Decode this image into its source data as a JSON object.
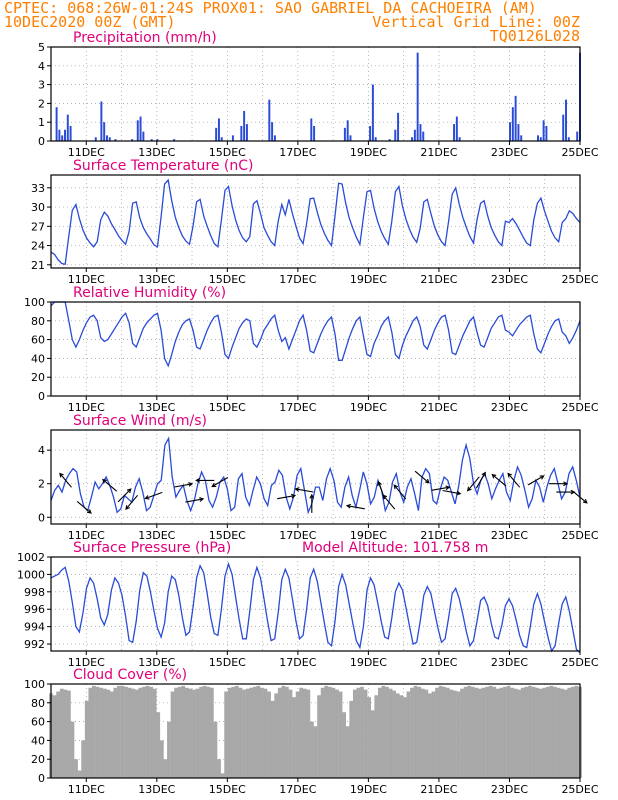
{
  "header": {
    "line1": "CPTEC:   068:26W-01:24S   PROX01: SAO GABRIEL DA CACHOEIRA (AM)",
    "line2_left": "10DEC2020 00Z (GMT)",
    "line2_right": "Vertical Grid Line: 00Z",
    "line3_right": "TQ0126L028"
  },
  "colors": {
    "header": "#ff8000",
    "panel_title": "#e0007a",
    "line": "#2a4bd7",
    "bars": "#2a4bd7",
    "cloud": "#a8a8a8",
    "arrows": "#000000",
    "grid": "#9a9a9a"
  },
  "chart_data": [
    {
      "id": "precip",
      "type": "bar",
      "title": "Precipitation (mm/h)",
      "xlabels": [
        "11DEC",
        "13DEC",
        "15DEC",
        "17DEC",
        "19DEC",
        "21DEC",
        "23DEC",
        "25DEC"
      ],
      "ylim": [
        0,
        5
      ],
      "yticks": [
        0,
        1,
        2,
        3,
        4,
        5
      ],
      "grid": true,
      "x_step_hours": 3,
      "values": [
        0,
        0,
        1.8,
        0.6,
        0.3,
        0.6,
        1.4,
        0.8,
        0,
        0,
        0,
        0,
        0,
        0,
        0,
        0,
        0.2,
        0,
        2.1,
        1.0,
        0.3,
        0.2,
        0,
        0.1,
        0,
        0,
        0,
        0,
        0,
        0.1,
        0,
        1.1,
        1.3,
        0.5,
        0,
        0,
        0.1,
        0,
        0.1,
        0,
        0,
        0,
        0,
        0,
        0.1,
        0,
        0,
        0,
        0,
        0,
        0,
        0,
        0,
        0,
        0,
        0,
        0,
        0,
        0,
        0.7,
        1.2,
        0.2,
        0,
        0,
        0,
        0.3,
        0,
        0,
        0.8,
        1.6,
        0.9,
        0,
        0,
        0,
        0,
        0,
        0,
        0,
        2.2,
        1.0,
        0.3,
        0,
        0,
        0,
        0,
        0,
        0,
        0,
        0,
        0,
        0,
        0,
        0,
        1.2,
        0.8,
        0,
        0,
        0,
        0,
        0,
        0,
        0,
        0,
        0,
        0,
        0.7,
        1.1,
        0.3,
        0,
        0,
        0,
        0,
        0,
        0,
        0.8,
        3.0,
        0.2,
        0,
        0,
        0,
        0,
        0.1,
        0,
        0.6,
        1.5,
        0,
        0,
        0,
        0,
        0.2,
        0.6,
        4.7,
        0.9,
        0.5,
        0,
        0,
        0,
        0,
        0,
        0,
        0,
        0,
        0,
        0,
        0.9,
        1.3,
        0.2,
        0,
        0,
        0,
        0,
        0,
        0,
        0,
        0,
        0,
        0,
        0,
        0,
        0,
        0,
        0,
        0,
        0,
        1.0,
        1.8,
        2.4,
        0.9,
        0.3,
        0,
        0,
        0,
        0,
        0,
        0.3,
        0.2,
        1.1,
        0.8,
        0,
        0,
        0,
        0,
        0,
        1.4,
        2.2,
        0.2,
        0,
        0,
        0.5,
        4.7
      ]
    },
    {
      "id": "temp",
      "type": "line",
      "title": "Surface Temperature (nC)",
      "xlabels": [
        "11DEC",
        "13DEC",
        "15DEC",
        "17DEC",
        "19DEC",
        "21DEC",
        "23DEC",
        "25DEC"
      ],
      "ylim": [
        20.5,
        35
      ],
      "yticks": [
        21,
        24,
        27,
        30,
        33
      ],
      "grid": true,
      "x_step_hours": 3,
      "values": [
        23.0,
        22.6,
        21.8,
        21.2,
        21.1,
        25.5,
        29.5,
        30.4,
        28.2,
        26.4,
        25.2,
        24.4,
        23.8,
        24.6,
        28.0,
        29.2,
        28.6,
        27.4,
        26.5,
        25.5,
        24.8,
        24.2,
        26.2,
        30.6,
        30.8,
        28.3,
        26.8,
        25.8,
        25.0,
        24.1,
        23.8,
        28.5,
        33.6,
        34.2,
        31.0,
        28.4,
        26.8,
        25.5,
        24.7,
        24.2,
        27.0,
        30.8,
        31.2,
        28.6,
        27.0,
        25.5,
        24.3,
        23.8,
        28.0,
        32.6,
        33.2,
        30.2,
        28.0,
        26.3,
        25.2,
        24.6,
        25.4,
        30.5,
        31.0,
        29.0,
        26.8,
        25.6,
        24.6,
        24.0,
        27.8,
        30.4,
        28.8,
        31.2,
        29.0,
        27.0,
        25.2,
        24.3,
        27.4,
        31.3,
        31.4,
        29.2,
        27.3,
        25.9,
        24.8,
        24.0,
        28.6,
        33.7,
        33.6,
        30.6,
        28.3,
        26.7,
        25.3,
        24.2,
        28.4,
        32.4,
        32.6,
        29.8,
        27.8,
        26.2,
        25.1,
        24.2,
        27.8,
        32.4,
        33.2,
        30.1,
        28.1,
        26.5,
        25.3,
        24.5,
        26.7,
        30.8,
        31.2,
        29.0,
        27.0,
        25.6,
        24.6,
        24.0,
        27.8,
        32.0,
        33.0,
        30.4,
        28.4,
        26.8,
        25.4,
        24.4,
        28.0,
        30.6,
        31.0,
        28.6,
        26.8,
        25.6,
        24.6,
        24.0,
        27.8,
        27.6,
        28.2,
        27.4,
        26.4,
        25.3,
        24.4,
        24.0,
        28.0,
        30.6,
        31.4,
        29.4,
        27.8,
        26.2,
        25.2,
        24.6,
        27.6,
        28.2,
        29.4,
        29.0,
        28.2,
        27.6
      ]
    },
    {
      "id": "rh",
      "type": "line",
      "title": "Relative Humidity (%)",
      "xlabels": [
        "11DEC",
        "13DEC",
        "15DEC",
        "17DEC",
        "19DEC",
        "21DEC",
        "23DEC",
        "25DEC"
      ],
      "ylim": [
        0,
        100
      ],
      "yticks": [
        0,
        20,
        40,
        60,
        80,
        100
      ],
      "grid": true,
      "x_step_hours": 3,
      "values": [
        96,
        100,
        100,
        100,
        100,
        80,
        60,
        52,
        60,
        70,
        78,
        84,
        86,
        80,
        62,
        58,
        60,
        66,
        72,
        78,
        84,
        88,
        78,
        56,
        52,
        62,
        72,
        78,
        82,
        86,
        88,
        70,
        40,
        32,
        44,
        58,
        68,
        76,
        80,
        82,
        70,
        52,
        50,
        60,
        70,
        78,
        84,
        86,
        68,
        44,
        40,
        52,
        62,
        72,
        78,
        82,
        80,
        56,
        52,
        60,
        70,
        76,
        82,
        86,
        70,
        58,
        62,
        50,
        60,
        70,
        80,
        86,
        70,
        48,
        46,
        56,
        66,
        74,
        80,
        84,
        66,
        38,
        38,
        50,
        62,
        72,
        80,
        84,
        64,
        44,
        42,
        56,
        64,
        74,
        80,
        84,
        68,
        44,
        40,
        54,
        64,
        72,
        80,
        84,
        74,
        54,
        50,
        60,
        70,
        78,
        84,
        86,
        70,
        46,
        44,
        54,
        64,
        72,
        80,
        84,
        68,
        54,
        52,
        62,
        72,
        78,
        84,
        86,
        70,
        68,
        64,
        70,
        76,
        80,
        84,
        86,
        66,
        50,
        46,
        56,
        66,
        74,
        80,
        82,
        68,
        64,
        56,
        62,
        70,
        80
      ]
    },
    {
      "id": "wind",
      "type": "line",
      "title": "Surface Wind (m/s)",
      "xlabels": [
        "11DEC",
        "13DEC",
        "15DEC",
        "17DEC",
        "19DEC",
        "21DEC",
        "23DEC",
        "25DEC"
      ],
      "ylim": [
        -0.4,
        5.2
      ],
      "yticks": [
        0,
        2,
        4
      ],
      "grid": true,
      "x_step_hours": 3,
      "values": [
        1.0,
        1.6,
        1.9,
        1.5,
        2.2,
        2.6,
        2.9,
        2.7,
        1.4,
        0.6,
        0.4,
        1.2,
        2.1,
        1.7,
        2.0,
        2.4,
        1.9,
        1.2,
        0.3,
        0.5,
        1.3,
        1.1,
        0.9,
        1.8,
        2.3,
        1.5,
        0.4,
        0.6,
        1.3,
        2.0,
        2.2,
        4.3,
        4.7,
        2.4,
        1.2,
        1.6,
        1.9,
        1.0,
        0.4,
        1.0,
        2.0,
        2.7,
        2.2,
        1.0,
        0.6,
        1.2,
        2.1,
        2.4,
        1.7,
        0.4,
        0.6,
        2.3,
        2.6,
        1.2,
        0.7,
        1.6,
        2.4,
        2.0,
        1.1,
        0.7,
        1.9,
        2.1,
        2.8,
        2.5,
        1.2,
        0.5,
        1.2,
        2.5,
        2.9,
        1.6,
        0.3,
        0.8,
        1.8,
        1.8,
        1.0,
        2.3,
        2.9,
        2.2,
        0.9,
        0.6,
        1.8,
        2.4,
        1.3,
        0.6,
        1.6,
        2.7,
        2.0,
        0.8,
        1.2,
        2.2,
        1.6,
        0.4,
        0.9,
        2.1,
        2.6,
        1.5,
        0.9,
        1.8,
        2.3,
        1.4,
        0.4,
        2.4,
        2.9,
        2.6,
        1.0,
        0.8,
        1.7,
        2.4,
        2.2,
        1.5,
        0.8,
        1.9,
        3.4,
        4.3,
        3.5,
        2.0,
        1.4,
        2.2,
        2.6,
        2.0,
        1.1,
        1.7,
        2.2,
        2.6,
        1.5,
        1.0,
        2.2,
        3.0,
        2.5,
        1.6,
        0.6,
        1.1,
        2.2,
        1.8,
        0.9,
        1.8,
        2.5,
        2.9,
        2.0,
        1.1,
        1.5,
        2.6,
        3.0,
        2.2,
        1.2
      ]
    },
    {
      "id": "pressure",
      "type": "line",
      "title": "Surface Pressure (hPa)",
      "annotation": "Model Altitude: 101.758 m",
      "xlabels": [
        "11DEC",
        "13DEC",
        "15DEC",
        "17DEC",
        "19DEC",
        "21DEC",
        "23DEC",
        "25DEC"
      ],
      "ylim": [
        991.2,
        1002
      ],
      "yticks": [
        992,
        994,
        996,
        998,
        1000,
        1002
      ],
      "grid": true,
      "x_step_hours": 3,
      "values": [
        999.6,
        999.8,
        1000.0,
        1000.5,
        1000.8,
        999.2,
        996.8,
        994.0,
        993.4,
        995.6,
        998.4,
        999.6,
        999.0,
        997.2,
        995.0,
        994.2,
        995.4,
        998.2,
        999.6,
        999.0,
        997.6,
        995.2,
        992.4,
        992.2,
        994.6,
        998.2,
        1000.2,
        999.8,
        998.0,
        995.8,
        993.8,
        992.8,
        994.4,
        998.0,
        999.8,
        999.4,
        997.6,
        995.0,
        993.0,
        993.4,
        996.2,
        999.6,
        1001.0,
        1000.2,
        997.8,
        995.0,
        993.2,
        993.0,
        996.0,
        999.8,
        1001.2,
        1000.0,
        997.4,
        994.8,
        992.6,
        992.6,
        995.8,
        999.4,
        1000.8,
        999.6,
        997.2,
        994.6,
        992.4,
        992.6,
        995.6,
        999.4,
        1000.6,
        999.6,
        997.2,
        994.6,
        992.6,
        993.0,
        996.0,
        999.6,
        1000.6,
        999.2,
        996.8,
        994.4,
        992.2,
        991.8,
        994.6,
        998.6,
        1000.0,
        998.8,
        996.6,
        994.4,
        992.4,
        991.6,
        994.0,
        998.2,
        999.6,
        998.8,
        996.8,
        994.6,
        992.8,
        992.6,
        995.0,
        998.0,
        999.0,
        998.2,
        996.2,
        994.0,
        992.0,
        992.2,
        994.6,
        997.6,
        998.6,
        997.8,
        995.8,
        993.8,
        992.2,
        992.6,
        995.0,
        997.8,
        998.4,
        997.2,
        995.4,
        993.4,
        991.8,
        992.4,
        994.6,
        997.0,
        997.4,
        996.4,
        994.4,
        992.8,
        992.6,
        994.2,
        996.4,
        997.2,
        996.4,
        994.8,
        993.0,
        991.8,
        991.6,
        994.0,
        996.6,
        997.8,
        996.6,
        994.6,
        992.8,
        991.2,
        991.8,
        994.4,
        996.6,
        997.4,
        995.8,
        993.6,
        991.4,
        991.0
      ]
    },
    {
      "id": "cloud",
      "type": "area",
      "title": "Cloud Cover (%)",
      "xlabels": [
        "11DEC",
        "13DEC",
        "15DEC",
        "17DEC",
        "19DEC",
        "21DEC",
        "23DEC",
        "25DEC"
      ],
      "ylim": [
        0,
        100
      ],
      "yticks": [
        0,
        20,
        40,
        60,
        80,
        100
      ],
      "grid": true,
      "x_step_hours": 3,
      "values": [
        90,
        88,
        92,
        95,
        94,
        93,
        60,
        20,
        8,
        40,
        82,
        96,
        98,
        97,
        96,
        95,
        94,
        92,
        96,
        98,
        98,
        97,
        96,
        95,
        94,
        96,
        97,
        98,
        97,
        95,
        70,
        40,
        20,
        60,
        92,
        96,
        97,
        98,
        96,
        95,
        94,
        95,
        97,
        98,
        97,
        96,
        60,
        20,
        5,
        92,
        96,
        97,
        98,
        96,
        94,
        95,
        96,
        97,
        98,
        96,
        95,
        92,
        82,
        90,
        96,
        98,
        97,
        94,
        86,
        92,
        96,
        95,
        94,
        60,
        55,
        88,
        96,
        98,
        97,
        96,
        94,
        92,
        70,
        55,
        82,
        94,
        96,
        97,
        94,
        86,
        72,
        88,
        96,
        98,
        97,
        95,
        93,
        90,
        88,
        86,
        92,
        96,
        98,
        97,
        95,
        94,
        90,
        92,
        96,
        98,
        97,
        96,
        94,
        93,
        92,
        95,
        97,
        98,
        97,
        96,
        95,
        96,
        97,
        98,
        97,
        95,
        96,
        97,
        98,
        96,
        95,
        94,
        96,
        97,
        98,
        97,
        96,
        95,
        96,
        97,
        98,
        97,
        96,
        95,
        94,
        96,
        97,
        98,
        97
      ]
    }
  ]
}
